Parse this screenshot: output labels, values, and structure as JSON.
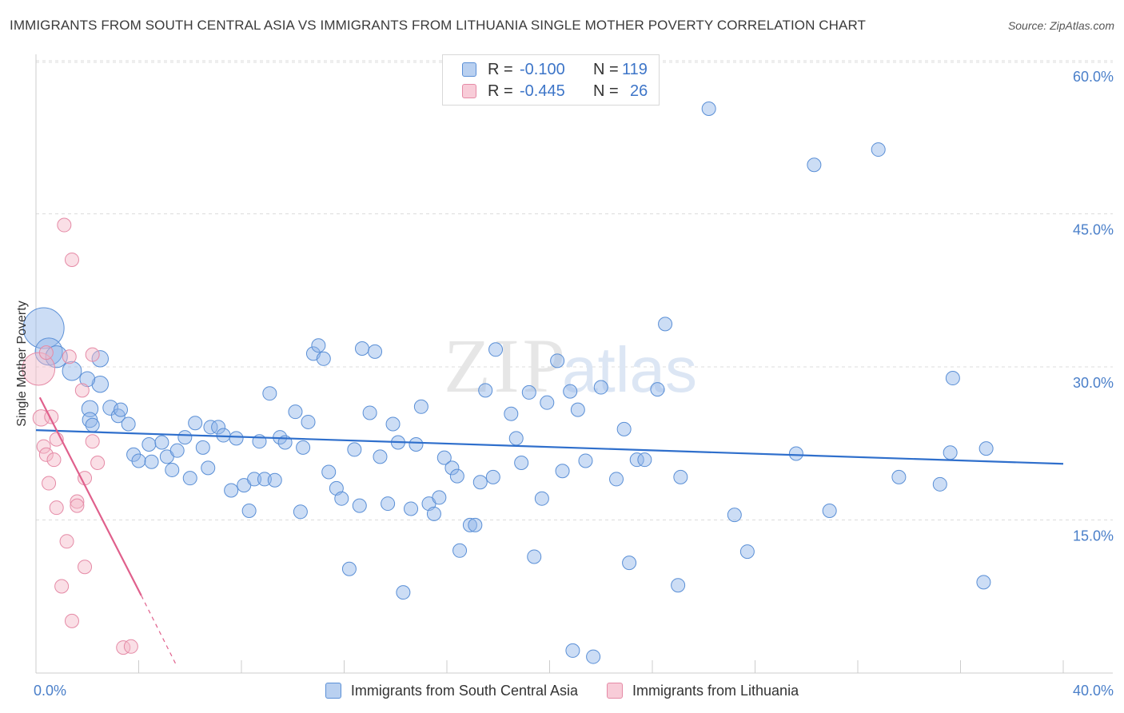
{
  "header": {
    "title": "IMMIGRANTS FROM SOUTH CENTRAL ASIA VS IMMIGRANTS FROM LITHUANIA SINGLE MOTHER POVERTY CORRELATION CHART",
    "source": "Source: ZipAtlas.com"
  },
  "watermark": {
    "zip": "ZIP",
    "atlas": "atlas"
  },
  "legend": {
    "r_label": "R =",
    "n_label": "N =",
    "series": [
      {
        "r": "-0.100",
        "n": "119"
      },
      {
        "r": "-0.445",
        "n": "26"
      }
    ]
  },
  "chart_data": {
    "type": "scatter",
    "title": "IMMIGRANTS FROM SOUTH CENTRAL ASIA VS IMMIGRANTS FROM LITHUANIA SINGLE MOTHER POVERTY CORRELATION CHART",
    "ylabel": "Single Mother Poverty",
    "xlabel": "",
    "xlim": [
      0,
      40
    ],
    "ylim": [
      0,
      62
    ],
    "x_tick_labels": [
      {
        "value": 0,
        "label": "0.0%"
      },
      {
        "value": 40,
        "label": "40.0%"
      }
    ],
    "y_tick_labels": [
      {
        "value": 15,
        "label": "15.0%"
      },
      {
        "value": 30,
        "label": "30.0%"
      },
      {
        "value": 45,
        "label": "45.0%"
      },
      {
        "value": 60,
        "label": "60.0%"
      }
    ],
    "grid": true,
    "legend_position": "top-center",
    "series": [
      {
        "name": "Immigrants from South Central Asia",
        "color": "#8fb4e8",
        "stroke": "#5a8fd6",
        "trend": {
          "x": [
            0,
            40
          ],
          "y": [
            23.8,
            20.5
          ],
          "color": "#2f6fcc"
        },
        "points": [
          [
            0.3,
            33.8,
            3
          ],
          [
            0.5,
            31.5,
            2
          ],
          [
            0.8,
            31.0,
            1.6
          ],
          [
            1.4,
            29.6,
            1.4
          ],
          [
            2.5,
            30.8,
            1.2
          ],
          [
            2.5,
            28.3,
            1.2
          ],
          [
            2.0,
            28.8,
            1.1
          ],
          [
            2.1,
            25.9,
            1.2
          ],
          [
            2.1,
            24.8,
            1.1
          ],
          [
            2.9,
            26.0,
            1.1
          ],
          [
            2.2,
            24.3,
            1.0
          ],
          [
            3.2,
            25.2,
            1.0
          ],
          [
            3.6,
            24.4,
            1.0
          ],
          [
            3.3,
            25.8,
            1.0
          ],
          [
            3.8,
            21.4,
            1.0
          ],
          [
            4.0,
            20.8,
            1.0
          ],
          [
            4.4,
            22.4,
            1.0
          ],
          [
            4.5,
            20.7,
            1.0
          ],
          [
            4.9,
            22.6,
            1.0
          ],
          [
            5.1,
            21.2,
            1.0
          ],
          [
            5.3,
            19.9,
            1.0
          ],
          [
            5.5,
            21.8,
            1.0
          ],
          [
            5.8,
            23.1,
            1.0
          ],
          [
            6.0,
            19.1,
            1.0
          ],
          [
            6.2,
            24.5,
            1.0
          ],
          [
            6.5,
            22.1,
            1.0
          ],
          [
            6.7,
            20.1,
            1.0
          ],
          [
            6.8,
            24.1,
            1.0
          ],
          [
            7.1,
            24.1,
            1.0
          ],
          [
            7.3,
            23.3,
            1.0
          ],
          [
            7.6,
            17.9,
            1.0
          ],
          [
            7.8,
            23.0,
            1.0
          ],
          [
            8.1,
            18.4,
            1.0
          ],
          [
            8.3,
            15.9,
            1.0
          ],
          [
            8.5,
            19.0,
            1.0
          ],
          [
            8.7,
            22.7,
            1.0
          ],
          [
            8.9,
            19.0,
            1.0
          ],
          [
            9.1,
            27.4,
            1.0
          ],
          [
            9.3,
            18.9,
            1.0
          ],
          [
            9.5,
            23.1,
            1.0
          ],
          [
            9.7,
            22.6,
            1.0
          ],
          [
            10.1,
            25.6,
            1.0
          ],
          [
            10.3,
            15.8,
            1.0
          ],
          [
            10.4,
            22.1,
            1.0
          ],
          [
            10.6,
            24.6,
            1.0
          ],
          [
            10.8,
            31.3,
            1.0
          ],
          [
            11.0,
            32.1,
            1.0
          ],
          [
            11.2,
            30.8,
            1.0
          ],
          [
            11.4,
            19.7,
            1.0
          ],
          [
            11.7,
            18.1,
            1.0
          ],
          [
            11.9,
            17.1,
            1.0
          ],
          [
            12.2,
            10.2,
            1.0
          ],
          [
            12.4,
            21.9,
            1.0
          ],
          [
            12.6,
            16.4,
            1.0
          ],
          [
            12.7,
            31.8,
            1.0
          ],
          [
            13.0,
            25.5,
            1.0
          ],
          [
            13.2,
            31.5,
            1.0
          ],
          [
            13.4,
            21.2,
            1.0
          ],
          [
            13.7,
            16.6,
            1.0
          ],
          [
            13.9,
            24.4,
            1.0
          ],
          [
            14.1,
            22.6,
            1.0
          ],
          [
            14.3,
            7.9,
            1.0
          ],
          [
            14.6,
            16.1,
            1.0
          ],
          [
            14.8,
            22.4,
            1.0
          ],
          [
            15.0,
            26.1,
            1.0
          ],
          [
            15.3,
            16.6,
            1.0
          ],
          [
            15.5,
            15.6,
            1.0
          ],
          [
            15.7,
            17.2,
            1.0
          ],
          [
            15.9,
            21.1,
            1.0
          ],
          [
            16.2,
            20.1,
            1.0
          ],
          [
            16.4,
            19.3,
            1.0
          ],
          [
            16.5,
            12.0,
            1.0
          ],
          [
            16.9,
            14.5,
            1.0
          ],
          [
            17.1,
            14.5,
            1.0
          ],
          [
            17.3,
            18.7,
            1.0
          ],
          [
            17.5,
            27.7,
            1.0
          ],
          [
            17.8,
            19.2,
            1.0
          ],
          [
            17.9,
            31.7,
            1.0
          ],
          [
            18.5,
            25.4,
            1.0
          ],
          [
            18.7,
            23.0,
            1.0
          ],
          [
            18.9,
            20.6,
            1.0
          ],
          [
            19.2,
            27.5,
            1.0
          ],
          [
            19.4,
            11.4,
            1.0
          ],
          [
            19.7,
            17.1,
            1.0
          ],
          [
            19.9,
            26.5,
            1.0
          ],
          [
            20.3,
            30.6,
            1.0
          ],
          [
            20.5,
            19.8,
            1.0
          ],
          [
            20.8,
            27.6,
            1.0
          ],
          [
            21.1,
            25.8,
            1.0
          ],
          [
            20.9,
            2.2,
            1.0
          ],
          [
            21.4,
            20.8,
            1.0
          ],
          [
            21.7,
            1.6,
            1.0
          ],
          [
            22.0,
            28.0,
            1.0
          ],
          [
            22.6,
            19.0,
            1.0
          ],
          [
            22.9,
            23.9,
            1.0
          ],
          [
            23.1,
            10.8,
            1.0
          ],
          [
            23.4,
            20.9,
            1.0
          ],
          [
            23.7,
            20.9,
            1.0
          ],
          [
            24.2,
            27.8,
            1.0
          ],
          [
            24.5,
            34.2,
            1.0
          ],
          [
            25.0,
            8.6,
            1.0
          ],
          [
            25.1,
            19.2,
            1.0
          ],
          [
            26.2,
            55.3,
            1.0
          ],
          [
            27.2,
            15.5,
            1.0
          ],
          [
            27.7,
            11.9,
            1.0
          ],
          [
            29.6,
            21.5,
            1.0
          ],
          [
            30.3,
            49.8,
            1.0
          ],
          [
            30.9,
            15.9,
            1.0
          ],
          [
            32.8,
            51.3,
            1.0
          ],
          [
            33.6,
            19.2,
            1.0
          ],
          [
            35.2,
            18.5,
            1.0
          ],
          [
            35.6,
            21.6,
            1.0
          ],
          [
            35.7,
            28.9,
            1.0
          ],
          [
            36.9,
            8.9,
            1.0
          ],
          [
            37.0,
            22.0,
            1.0
          ]
        ]
      },
      {
        "name": "Immigrants from Lithuania",
        "color": "#f4b8c8",
        "stroke": "#e58aa6",
        "trend": {
          "x": [
            0.15,
            4.1
          ],
          "y": [
            27.0,
            7.6
          ],
          "dash_to": [
            5.5,
            0.6
          ],
          "color": "#e0608c"
        },
        "points": [
          [
            0.1,
            29.8,
            2.4
          ],
          [
            0.2,
            25.0,
            1.2
          ],
          [
            0.3,
            22.2,
            1.0
          ],
          [
            0.4,
            31.4,
            1.0
          ],
          [
            0.4,
            21.4,
            1.0
          ],
          [
            0.5,
            18.6,
            1.0
          ],
          [
            0.6,
            25.1,
            1.0
          ],
          [
            0.7,
            20.9,
            1.0
          ],
          [
            0.8,
            16.2,
            1.0
          ],
          [
            0.8,
            22.9,
            1.0
          ],
          [
            1.0,
            8.5,
            1.0
          ],
          [
            1.1,
            43.9,
            1.0
          ],
          [
            1.2,
            12.9,
            1.0
          ],
          [
            1.4,
            40.5,
            1.0
          ],
          [
            1.4,
            5.1,
            1.0
          ],
          [
            1.6,
            16.8,
            1.0
          ],
          [
            1.6,
            16.4,
            1.0
          ],
          [
            1.8,
            27.7,
            1.0
          ],
          [
            1.9,
            19.1,
            1.0
          ],
          [
            1.9,
            10.4,
            1.0
          ],
          [
            2.2,
            31.2,
            1.0
          ],
          [
            2.2,
            22.7,
            1.0
          ],
          [
            2.4,
            20.6,
            1.0
          ],
          [
            3.4,
            2.5,
            1.0
          ],
          [
            3.7,
            2.6,
            1.0
          ],
          [
            1.3,
            31.0,
            1.0
          ]
        ]
      }
    ],
    "bottom_legend": [
      "Immigrants from South Central Asia",
      "Immigrants from Lithuania"
    ]
  }
}
